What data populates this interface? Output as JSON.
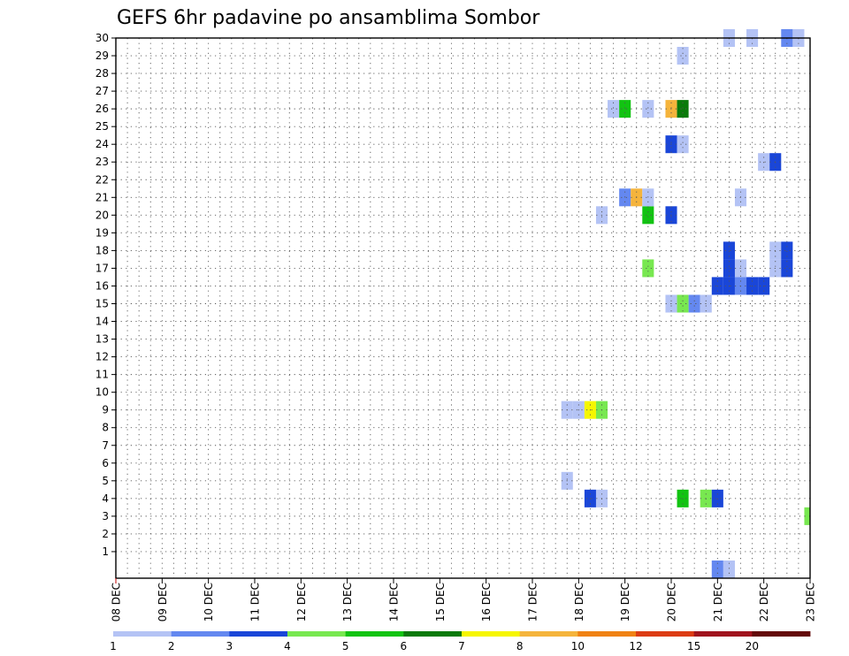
{
  "chart_data": {
    "type": "heatmap",
    "title": "GEFS 6hr padavine po ansamblima Sombor",
    "xlabel": "",
    "ylabel": "",
    "x_range": [
      0,
      60
    ],
    "y_range": [
      0,
      30
    ],
    "x_tick_labels": [
      "08 DEC",
      "09 DEC",
      "10 DEC",
      "11 DEC",
      "12 DEC",
      "13 DEC",
      "14 DEC",
      "15 DEC",
      "16 DEC",
      "17 DEC",
      "18 DEC",
      "19 DEC",
      "20 DEC",
      "21 DEC",
      "22 DEC",
      "23 DEC"
    ],
    "y_tick_labels": [
      "1",
      "2",
      "3",
      "4",
      "5",
      "6",
      "7",
      "8",
      "9",
      "10",
      "11",
      "12",
      "13",
      "14",
      "15",
      "16",
      "17",
      "18",
      "19",
      "20",
      "21",
      "22",
      "23",
      "24",
      "25",
      "26",
      "27",
      "28",
      "29",
      "30"
    ],
    "grid": true,
    "colorbar": {
      "colors": [
        "#b4c3f5",
        "#6488f0",
        "#1a46d8",
        "#78e850",
        "#12c312",
        "#0a7a0a",
        "#f6f600",
        "#f5b43c",
        "#f08214",
        "#dc3c14",
        "#a0141e",
        "#640a0a"
      ],
      "labels": [
        "1",
        "2",
        "3",
        "4",
        "5",
        "6",
        "7",
        "8",
        "10",
        "12",
        "15",
        "20"
      ]
    },
    "cells": [
      {
        "m": 0,
        "s": 52,
        "c": 2
      },
      {
        "m": 0,
        "s": 53,
        "c": 1
      },
      {
        "m": 3,
        "s": 60,
        "c": 4
      },
      {
        "m": 4,
        "s": 41,
        "c": 3
      },
      {
        "m": 4,
        "s": 42,
        "c": 1
      },
      {
        "m": 4,
        "s": 49,
        "c": 5
      },
      {
        "m": 4,
        "s": 51,
        "c": 4
      },
      {
        "m": 4,
        "s": 52,
        "c": 3
      },
      {
        "m": 5,
        "s": 39,
        "c": 1
      },
      {
        "m": 9,
        "s": 39,
        "c": 1
      },
      {
        "m": 9,
        "s": 40,
        "c": 1
      },
      {
        "m": 9,
        "s": 41,
        "c": 7
      },
      {
        "m": 9,
        "s": 42,
        "c": 4
      },
      {
        "m": 15,
        "s": 48,
        "c": 1
      },
      {
        "m": 15,
        "s": 49,
        "c": 4
      },
      {
        "m": 15,
        "s": 50,
        "c": 2
      },
      {
        "m": 15,
        "s": 51,
        "c": 1
      },
      {
        "m": 16,
        "s": 52,
        "c": 3
      },
      {
        "m": 16,
        "s": 53,
        "c": 3
      },
      {
        "m": 16,
        "s": 54,
        "c": 2
      },
      {
        "m": 16,
        "s": 55,
        "c": 3
      },
      {
        "m": 16,
        "s": 56,
        "c": 3
      },
      {
        "m": 17,
        "s": 46,
        "c": 4
      },
      {
        "m": 17,
        "s": 53,
        "c": 3
      },
      {
        "m": 17,
        "s": 54,
        "c": 1
      },
      {
        "m": 17,
        "s": 57,
        "c": 1
      },
      {
        "m": 17,
        "s": 58,
        "c": 3
      },
      {
        "m": 18,
        "s": 53,
        "c": 3
      },
      {
        "m": 18,
        "s": 57,
        "c": 1
      },
      {
        "m": 18,
        "s": 58,
        "c": 3
      },
      {
        "m": 20,
        "s": 42,
        "c": 1
      },
      {
        "m": 20,
        "s": 46,
        "c": 5
      },
      {
        "m": 20,
        "s": 48,
        "c": 3
      },
      {
        "m": 21,
        "s": 44,
        "c": 2
      },
      {
        "m": 21,
        "s": 45,
        "c": 8
      },
      {
        "m": 21,
        "s": 46,
        "c": 1
      },
      {
        "m": 21,
        "s": 54,
        "c": 1
      },
      {
        "m": 23,
        "s": 56,
        "c": 1
      },
      {
        "m": 23,
        "s": 57,
        "c": 3
      },
      {
        "m": 24,
        "s": 48,
        "c": 3
      },
      {
        "m": 24,
        "s": 49,
        "c": 1
      },
      {
        "m": 26,
        "s": 43,
        "c": 1
      },
      {
        "m": 26,
        "s": 44,
        "c": 5
      },
      {
        "m": 26,
        "s": 46,
        "c": 1
      },
      {
        "m": 26,
        "s": 48,
        "c": 8
      },
      {
        "m": 26,
        "s": 49,
        "c": 6
      },
      {
        "m": 29,
        "s": 49,
        "c": 1
      },
      {
        "m": 30,
        "s": 53,
        "c": 1
      },
      {
        "m": 30,
        "s": 55,
        "c": 1
      },
      {
        "m": 30,
        "s": 58,
        "c": 2
      },
      {
        "m": 30,
        "s": 59,
        "c": 1
      }
    ]
  }
}
